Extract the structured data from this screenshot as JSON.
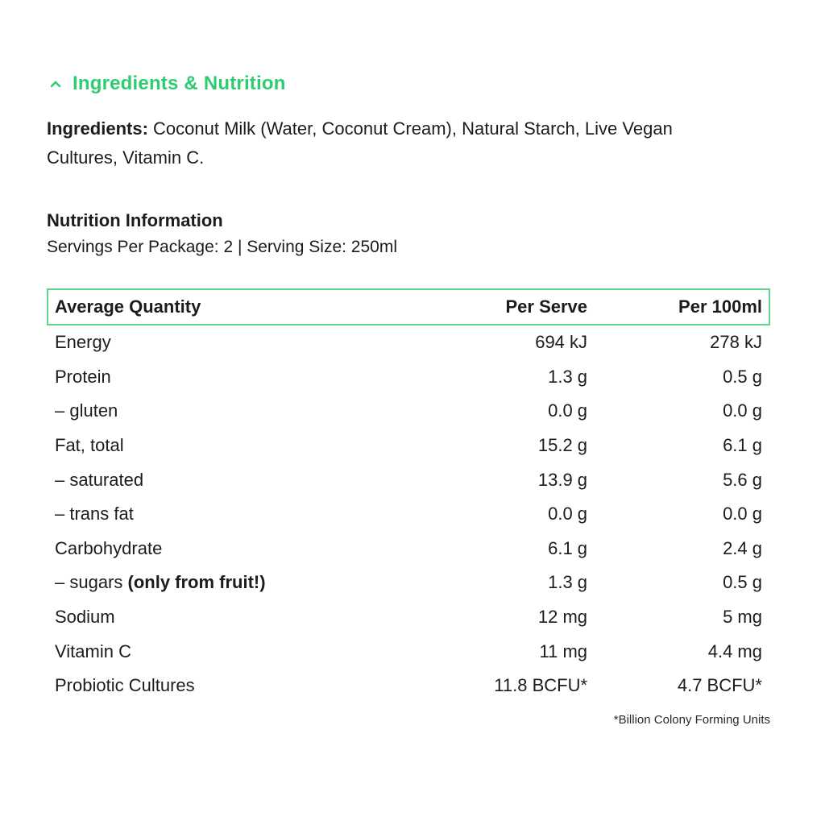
{
  "accordion": {
    "title": "Ingredients & Nutrition",
    "icon": "chevron-up-icon",
    "accent_color": "#2ecc71"
  },
  "ingredients": {
    "label": "Ingredients:",
    "text": " Coconut Milk (Water, Coconut Cream), Natural Starch, Live Vegan Cultures, Vitamin C."
  },
  "nutrition": {
    "heading": "Nutrition Information",
    "servings": "Servings Per Package: 2 | Serving Size: 250ml",
    "columns": {
      "name": "Average Quantity",
      "per_serve": "Per Serve",
      "per_100ml": "Per 100ml"
    },
    "rows": [
      {
        "name": "Energy",
        "extra": "",
        "per_serve": "694 kJ",
        "per_100ml": "278 kJ"
      },
      {
        "name": "Protein",
        "extra": "",
        "per_serve": "1.3 g",
        "per_100ml": "0.5 g"
      },
      {
        "name": "– gluten",
        "extra": "",
        "per_serve": "0.0 g",
        "per_100ml": "0.0 g"
      },
      {
        "name": "Fat, total",
        "extra": "",
        "per_serve": "15.2 g",
        "per_100ml": "6.1 g"
      },
      {
        "name": "– saturated",
        "extra": "",
        "per_serve": "13.9 g",
        "per_100ml": "5.6 g"
      },
      {
        "name": "– trans fat",
        "extra": "",
        "per_serve": "0.0 g",
        "per_100ml": "0.0 g"
      },
      {
        "name": "Carbohydrate",
        "extra": "",
        "per_serve": "6.1 g",
        "per_100ml": "2.4 g"
      },
      {
        "name": "– sugars ",
        "extra": "(only from fruit!)",
        "per_serve": "1.3 g",
        "per_100ml": "0.5 g"
      },
      {
        "name": "Sodium",
        "extra": "",
        "per_serve": "12 mg",
        "per_100ml": "5 mg"
      },
      {
        "name": "Vitamin C",
        "extra": "",
        "per_serve": "11 mg",
        "per_100ml": "4.4 mg"
      },
      {
        "name": "Probiotic Cultures",
        "extra": "",
        "per_serve": "11.8 BCFU*",
        "per_100ml": "4.7 BCFU*"
      }
    ],
    "footnote": "*Billion Colony Forming Units"
  }
}
